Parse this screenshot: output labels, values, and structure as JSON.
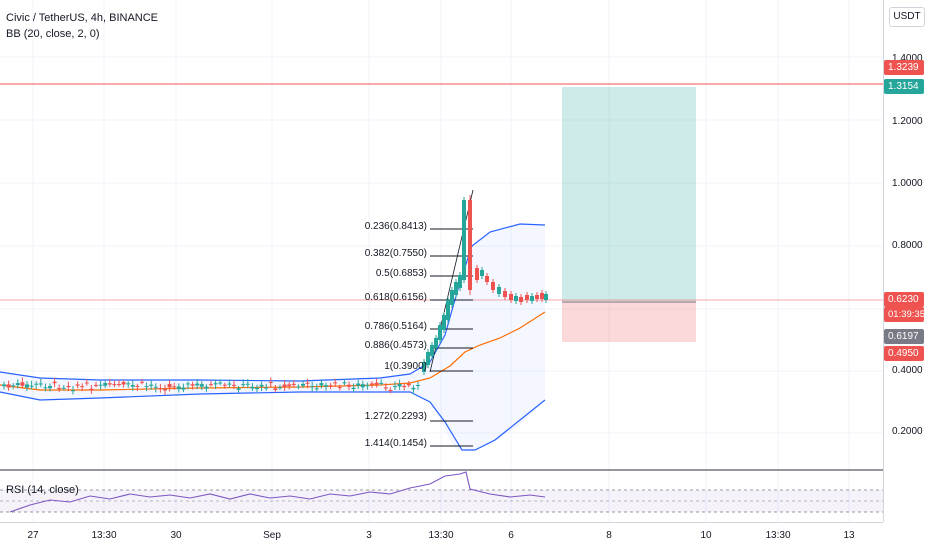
{
  "header": {
    "symbol_line": "Civic / TetherUS, 4h, BINANCE",
    "indicator_line": "BB (20, close, 2, 0)"
  },
  "price_axis": {
    "currency": "USDT",
    "ticks": [
      "1.4000",
      "1.2000",
      "1.0000",
      "0.8000",
      "0.4000",
      "0.2000"
    ],
    "labels": {
      "target_upper": "1.3239",
      "target_tp": "1.3154",
      "current_price": "0.6230",
      "countdown": "01:39:35",
      "entry": "0.6197",
      "stop": "0.4950"
    }
  },
  "time_axis": {
    "ticks": [
      "27",
      "13:30",
      "30",
      "Sep",
      "3",
      "13:30",
      "6",
      "8",
      "10",
      "13:30",
      "13"
    ]
  },
  "fibonacci": {
    "levels": [
      "0.236(0.8413)",
      "0.382(0.7550)",
      "0.5(0.6853)",
      "0.618(0.6156)",
      "0.786(0.5164)",
      "0.886(0.4573)",
      "1(0.3900)",
      "1.272(0.2293)",
      "1.414(0.1454)"
    ]
  },
  "rsi": {
    "label": "RSI (14, close)"
  },
  "colors": {
    "up": "#26a69a",
    "down": "#ef5350",
    "bb_band": "#2962ff",
    "bb_basis": "#ff6d00",
    "rsi_line": "#7e57c2",
    "target_zone": "#26a69a",
    "stop_zone": "#ef5350"
  }
}
